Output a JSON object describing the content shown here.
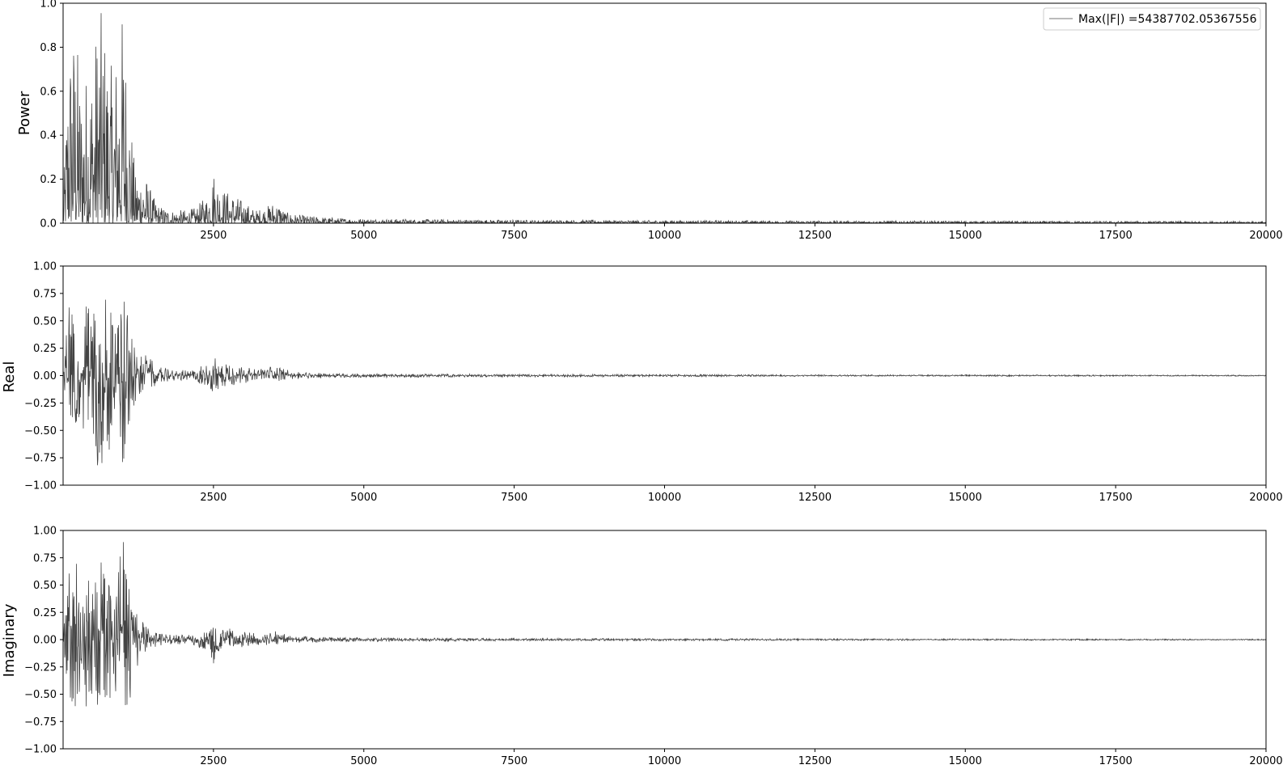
{
  "colors": {
    "line": "#444444",
    "frame": "#000000",
    "legend_border": "#cccccc",
    "legend_line": "#777777"
  },
  "legend": {
    "label": "Max(|F|) =54387702.05367556",
    "placement": "upper-right"
  },
  "chart_data": [
    {
      "type": "line",
      "ylabel": "Power",
      "xlim": [
        0,
        20000
      ],
      "ylim": [
        0,
        1.0
      ],
      "xticks": [
        2500,
        5000,
        7500,
        10000,
        12500,
        15000,
        17500,
        20000
      ],
      "xtick_labels": [
        "2500",
        "5000",
        "7500",
        "10000",
        "12500",
        "15000",
        "17500",
        "20000"
      ],
      "yticks": [
        0.0,
        0.2,
        0.4,
        0.6,
        0.8,
        1.0
      ],
      "ytick_labels": [
        "0.0",
        "0.2",
        "0.4",
        "0.6",
        "0.8",
        "1.0"
      ],
      "grid": false,
      "series": [
        {
          "envelope_x": [
            0,
            100,
            200,
            300,
            400,
            500,
            600,
            700,
            800,
            900,
            1000,
            1100,
            1200,
            1300,
            1400,
            1500,
            1600,
            1800,
            2000,
            2200,
            2400,
            2500,
            2600,
            2700,
            2800,
            3000,
            3200,
            3400,
            3500,
            3600,
            3700,
            4000,
            4500,
            5000,
            6000,
            7500,
            10000,
            12500,
            15000,
            17500,
            20000
          ],
          "envelope_upper": [
            0.1,
            0.88,
            0.93,
            0.65,
            0.72,
            0.8,
            1.0,
            0.89,
            0.72,
            0.82,
            1.0,
            0.6,
            0.22,
            0.25,
            0.2,
            0.12,
            0.08,
            0.06,
            0.06,
            0.07,
            0.13,
            0.25,
            0.18,
            0.15,
            0.14,
            0.1,
            0.06,
            0.08,
            0.1,
            0.09,
            0.05,
            0.035,
            0.025,
            0.02,
            0.018,
            0.015,
            0.013,
            0.011,
            0.01,
            0.009,
            0.008
          ],
          "envelope_lower": [
            0,
            0,
            0,
            0,
            0,
            0,
            0,
            0,
            0,
            0,
            0,
            0,
            0,
            0,
            0,
            0,
            0,
            0,
            0,
            0,
            0,
            0,
            0,
            0,
            0,
            0,
            0,
            0,
            0,
            0,
            0,
            0,
            0,
            0,
            0,
            0,
            0,
            0,
            0,
            0,
            0
          ]
        }
      ]
    },
    {
      "type": "line",
      "ylabel": "Real",
      "xlim": [
        0,
        20000
      ],
      "ylim": [
        -1.0,
        1.0
      ],
      "xticks": [
        2500,
        5000,
        7500,
        10000,
        12500,
        15000,
        17500,
        20000
      ],
      "xtick_labels": [
        "2500",
        "5000",
        "7500",
        "10000",
        "12500",
        "15000",
        "17500",
        "20000"
      ],
      "yticks": [
        -1.0,
        -0.75,
        -0.5,
        -0.25,
        0.0,
        0.25,
        0.5,
        0.75,
        1.0
      ],
      "ytick_labels": [
        "−1.00",
        "−0.75",
        "−0.50",
        "−0.25",
        "0.00",
        "0.25",
        "0.50",
        "0.75",
        "1.00"
      ],
      "grid": false,
      "series": [
        {
          "envelope_x": [
            0,
            100,
            200,
            300,
            400,
            500,
            600,
            700,
            800,
            900,
            1000,
            1100,
            1200,
            1300,
            1400,
            1600,
            1800,
            2000,
            2200,
            2400,
            2500,
            2600,
            2800,
            3000,
            3200,
            3400,
            3500,
            3600,
            3800,
            4000,
            4500,
            5000,
            6000,
            7500,
            10000,
            12500,
            15000,
            17500,
            20000
          ],
          "envelope_upper": [
            0.05,
            0.72,
            0.55,
            0.45,
            0.68,
            0.6,
            0.75,
            0.78,
            0.6,
            0.5,
            0.8,
            0.45,
            0.3,
            0.22,
            0.18,
            0.08,
            0.05,
            0.05,
            0.06,
            0.12,
            0.18,
            0.14,
            0.12,
            0.08,
            0.06,
            0.07,
            0.1,
            0.08,
            0.04,
            0.03,
            0.02,
            0.018,
            0.015,
            0.012,
            0.01,
            0.008,
            0.007,
            0.006,
            0.005
          ],
          "envelope_lower": [
            -0.05,
            -0.68,
            -0.48,
            -0.42,
            -0.6,
            -0.62,
            -0.97,
            -0.75,
            -0.7,
            -0.55,
            -0.92,
            -0.52,
            -0.3,
            -0.15,
            -0.12,
            -0.08,
            -0.05,
            -0.05,
            -0.06,
            -0.1,
            -0.16,
            -0.13,
            -0.1,
            -0.07,
            -0.05,
            -0.05,
            -0.06,
            -0.05,
            -0.03,
            -0.03,
            -0.02,
            -0.018,
            -0.015,
            -0.012,
            -0.01,
            -0.008,
            -0.007,
            -0.006,
            -0.005
          ]
        }
      ]
    },
    {
      "type": "line",
      "ylabel": "Imaginary",
      "xlim": [
        0,
        20000
      ],
      "ylim": [
        -1.0,
        1.0
      ],
      "xticks": [
        2500,
        5000,
        7500,
        10000,
        12500,
        15000,
        17500,
        20000
      ],
      "xtick_labels": [
        "2500",
        "5000",
        "7500",
        "10000",
        "12500",
        "15000",
        "17500",
        "20000"
      ],
      "yticks": [
        -1.0,
        -0.75,
        -0.5,
        -0.25,
        0.0,
        0.25,
        0.5,
        0.75,
        1.0
      ],
      "ytick_labels": [
        "−1.00",
        "−0.75",
        "−0.50",
        "−0.25",
        "0.00",
        "0.25",
        "0.50",
        "0.75",
        "1.00"
      ],
      "grid": false,
      "series": [
        {
          "envelope_x": [
            0,
            100,
            200,
            300,
            400,
            500,
            600,
            700,
            800,
            900,
            1000,
            1100,
            1200,
            1300,
            1400,
            1600,
            1800,
            2000,
            2200,
            2400,
            2500,
            2600,
            2800,
            3000,
            3200,
            3400,
            3500,
            3600,
            3800,
            4000,
            4500,
            5000,
            6000,
            7500,
            10000,
            12500,
            15000,
            17500,
            20000
          ],
          "envelope_upper": [
            0.05,
            0.8,
            0.92,
            0.5,
            0.55,
            0.6,
            0.92,
            0.85,
            0.55,
            0.65,
            0.92,
            0.5,
            0.3,
            0.18,
            0.12,
            0.06,
            0.05,
            0.05,
            0.06,
            0.12,
            0.16,
            0.12,
            0.1,
            0.08,
            0.06,
            0.07,
            0.08,
            0.07,
            0.04,
            0.03,
            0.02,
            0.018,
            0.015,
            0.012,
            0.01,
            0.008,
            0.007,
            0.006,
            0.005
          ],
          "envelope_lower": [
            -0.05,
            -0.55,
            -0.72,
            -0.6,
            -0.7,
            -0.6,
            -0.65,
            -0.68,
            -0.55,
            -0.6,
            -0.62,
            -0.66,
            -0.3,
            -0.15,
            -0.12,
            -0.06,
            -0.05,
            -0.05,
            -0.06,
            -0.12,
            -0.24,
            -0.1,
            -0.08,
            -0.07,
            -0.05,
            -0.05,
            -0.06,
            -0.05,
            -0.03,
            -0.03,
            -0.02,
            -0.018,
            -0.015,
            -0.012,
            -0.01,
            -0.008,
            -0.007,
            -0.006,
            -0.005
          ]
        }
      ]
    }
  ]
}
